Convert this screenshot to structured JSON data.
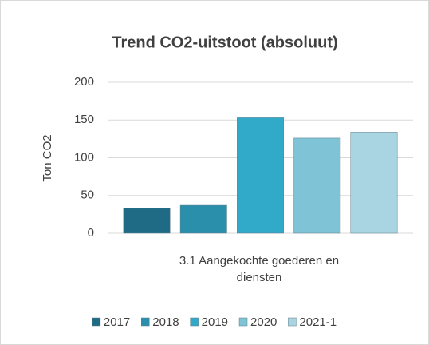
{
  "chart_data": {
    "type": "bar",
    "title": "Trend CO2-uitstoot (absoluut)",
    "y_label": "Ton CO2",
    "categories": [
      "3.1 Aangekochte goederen en diensten"
    ],
    "series": [
      {
        "name": "2017",
        "color": "#1f6b85",
        "values": [
          33
        ]
      },
      {
        "name": "2018",
        "color": "#2a8fab",
        "values": [
          37
        ]
      },
      {
        "name": "2019",
        "color": "#31a9c9",
        "values": [
          153
        ]
      },
      {
        "name": "2020",
        "color": "#7ec3d6",
        "values": [
          126
        ]
      },
      {
        "name": "2021-1",
        "color": "#a9d5e2",
        "values": [
          134
        ]
      }
    ],
    "ylim": [
      0,
      200
    ],
    "yticks": [
      0,
      50,
      100,
      150,
      200
    ],
    "grid": true,
    "legend": "bottom"
  }
}
